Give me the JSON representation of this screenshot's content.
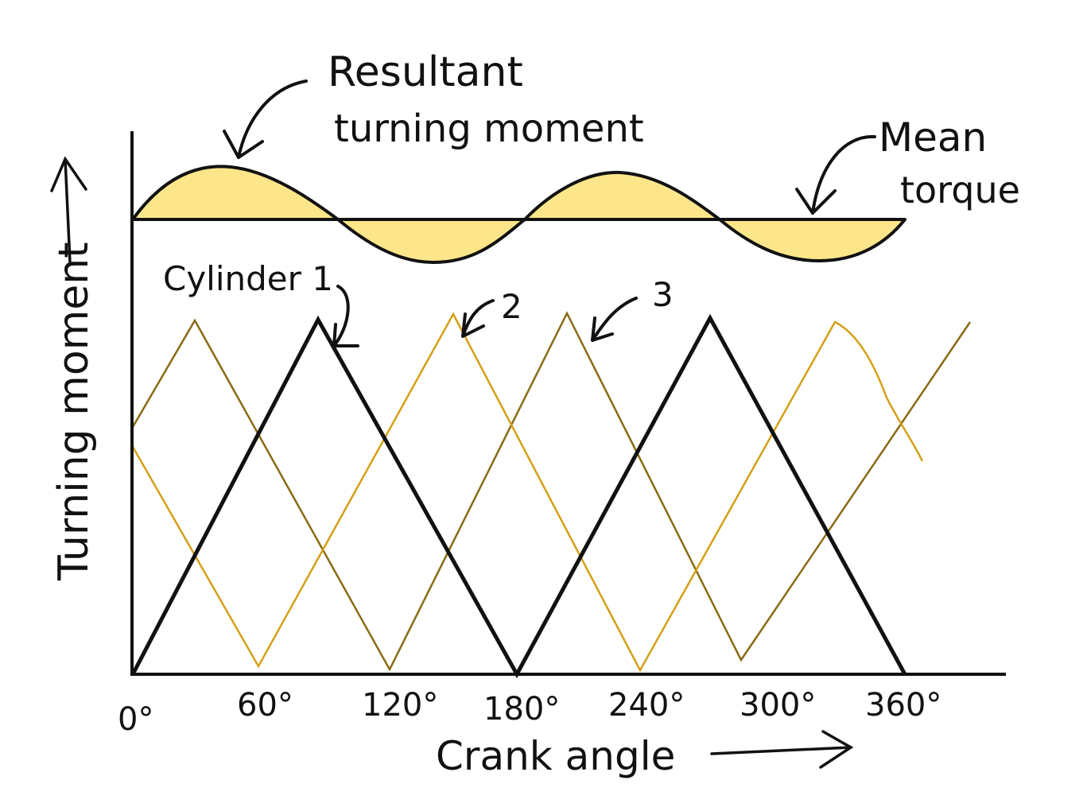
{
  "labels": {
    "resultant_line1": "Resultant",
    "resultant_line2": "turning moment",
    "mean_line1": "Mean",
    "mean_line2": "torque",
    "cylinder1": "Cylinder 1",
    "cylinder2": "2",
    "cylinder3": "3",
    "x_axis": "Crank angle",
    "y_axis": "Turning moment"
  },
  "x_ticks": [
    "0°",
    "60°",
    "120°",
    "180°",
    "240°",
    "300°",
    "360°"
  ],
  "colors": {
    "ink": "#111111",
    "resultant_fill": "#fde68a",
    "cylinder2": "#d4a017",
    "cylinder3": "#8a6a14"
  }
}
